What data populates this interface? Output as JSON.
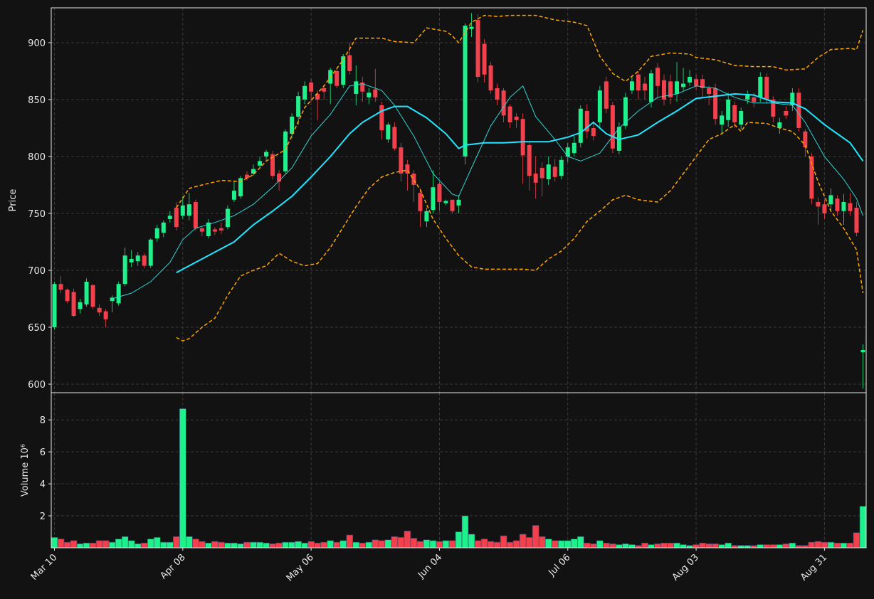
{
  "chart_data": [
    {
      "type": "candlestick",
      "ylabel": "Price",
      "ylim": [
        592.5,
        930.6
      ],
      "yticks": [
        600,
        650,
        700,
        750,
        800,
        850,
        900
      ],
      "grid": true,
      "up_color": "#1ef08c",
      "down_color": "#f2404c",
      "open": [
        650,
        688,
        683,
        681,
        666,
        670,
        687,
        667,
        664,
        673,
        671,
        688,
        707,
        708,
        713,
        704,
        728,
        733,
        745,
        755,
        748,
        748,
        760,
        737,
        730,
        736,
        737,
        738,
        762,
        765,
        784,
        785,
        792,
        800,
        802,
        785,
        787,
        820,
        835,
        850,
        865,
        855,
        860,
        864,
        875,
        863,
        889,
        855,
        865,
        852,
        859,
        845,
        815,
        826,
        808,
        793,
        785,
        768,
        743,
        753,
        776,
        759,
        762,
        757,
        800,
        912,
        920,
        899,
        880,
        860,
        858,
        844,
        835,
        833,
        810,
        785,
        790,
        780,
        791,
        783,
        800,
        803,
        812,
        840,
        825,
        830,
        866,
        845,
        805,
        827,
        858,
        872,
        864,
        848,
        878,
        867,
        866,
        855,
        861,
        865,
        868,
        868,
        860,
        860,
        828,
        832,
        845,
        828,
        850,
        852,
        852,
        870,
        850,
        825,
        840,
        845,
        856,
        822,
        800,
        760,
        758,
        758,
        763,
        752,
        759,
        755,
        628
      ],
      "high": [
        690,
        695,
        684,
        684,
        675,
        693,
        688,
        670,
        666,
        678,
        690,
        720,
        718,
        716,
        715,
        728,
        740,
        744,
        752,
        760,
        765,
        768,
        762,
        738,
        745,
        738,
        742,
        757,
        778,
        783,
        787,
        793,
        800,
        806,
        805,
        788,
        824,
        838,
        857,
        866,
        868,
        858,
        862,
        878,
        878,
        890,
        900,
        880,
        870,
        860,
        877,
        848,
        830,
        830,
        812,
        797,
        788,
        772,
        755,
        788,
        778,
        762,
        762,
        766,
        917,
        926,
        925,
        903,
        883,
        864,
        860,
        846,
        838,
        838,
        812,
        800,
        795,
        800,
        798,
        800,
        812,
        818,
        845,
        846,
        830,
        862,
        870,
        848,
        830,
        856,
        870,
        875,
        870,
        876,
        882,
        872,
        872,
        883,
        878,
        876,
        872,
        872,
        862,
        864,
        840,
        856,
        848,
        843,
        858,
        856,
        874,
        873,
        853,
        834,
        844,
        860,
        860,
        824,
        803,
        764,
        762,
        772,
        766,
        767,
        768,
        760,
        635
      ],
      "low": [
        648,
        680,
        671,
        659,
        662,
        668,
        666,
        660,
        650,
        663,
        669,
        686,
        703,
        704,
        702,
        702,
        725,
        729,
        742,
        735,
        745,
        744,
        735,
        730,
        728,
        731,
        732,
        736,
        760,
        763,
        779,
        783,
        790,
        797,
        780,
        770,
        785,
        816,
        828,
        846,
        848,
        832,
        850,
        846,
        860,
        860,
        872,
        845,
        848,
        846,
        848,
        815,
        812,
        805,
        778,
        770,
        760,
        738,
        738,
        750,
        752,
        757,
        750,
        750,
        793,
        905,
        865,
        865,
        855,
        845,
        830,
        825,
        825,
        776,
        770,
        763,
        765,
        775,
        778,
        780,
        795,
        800,
        808,
        816,
        814,
        826,
        838,
        803,
        802,
        824,
        855,
        850,
        850,
        843,
        850,
        845,
        846,
        848,
        858,
        862,
        858,
        852,
        845,
        828,
        820,
        826,
        825,
        824,
        846,
        843,
        848,
        846,
        830,
        820,
        833,
        840,
        822,
        800,
        758,
        740,
        745,
        752,
        748,
        740,
        748,
        730,
        596
      ],
      "close": [
        688,
        683,
        673,
        660,
        672,
        690,
        668,
        663,
        657,
        676,
        688,
        713,
        710,
        713,
        704,
        727,
        737,
        742,
        748,
        738,
        757,
        758,
        737,
        734,
        742,
        734,
        735,
        754,
        770,
        781,
        781,
        789,
        796,
        804,
        783,
        778,
        822,
        835,
        853,
        862,
        857,
        850,
        857,
        876,
        862,
        888,
        875,
        866,
        857,
        856,
        852,
        823,
        828,
        807,
        785,
        785,
        775,
        752,
        752,
        773,
        760,
        761,
        752,
        762,
        915,
        914,
        870,
        872,
        858,
        850,
        836,
        830,
        832,
        801,
        783,
        777,
        781,
        793,
        782,
        797,
        808,
        812,
        842,
        822,
        818,
        858,
        842,
        807,
        826,
        852,
        866,
        858,
        858,
        873,
        862,
        850,
        852,
        866,
        864,
        870,
        862,
        860,
        855,
        833,
        836,
        850,
        830,
        840,
        855,
        848,
        870,
        850,
        835,
        830,
        836,
        856,
        825,
        808,
        763,
        756,
        750,
        766,
        752,
        760,
        752,
        733,
        630
      ],
      "series": [
        {
          "color": "#ffa500",
          "linewidth": 1.5,
          "linestyle": "dashed",
          "x": [
            19,
            21,
            23,
            26,
            29,
            31,
            33,
            36,
            39,
            42,
            45,
            47,
            51,
            53,
            56,
            58,
            61,
            62,
            63,
            65,
            67,
            69,
            71,
            75,
            78,
            81,
            83,
            85,
            87,
            89,
            91,
            93,
            96,
            99,
            100,
            103,
            106,
            109,
            112,
            114,
            117,
            119,
            121,
            124,
            125,
            126
          ],
          "values": [
            755,
            772,
            775,
            779,
            778,
            784,
            796,
            806,
            843,
            862,
            885,
            904,
            904,
            901,
            900,
            913,
            910,
            906,
            900,
            918,
            924,
            923,
            924,
            924,
            920,
            918,
            915,
            888,
            873,
            866,
            875,
            888,
            891,
            890,
            887,
            885,
            880,
            879,
            879,
            876,
            877,
            887,
            894,
            895,
            894,
            911
          ]
        },
        {
          "color": "#ffa500",
          "linewidth": 1.5,
          "linestyle": "dashed",
          "x": [
            19,
            20,
            21,
            23,
            25,
            27,
            29,
            31,
            33,
            35,
            37,
            39,
            41,
            43,
            45,
            47,
            49,
            51,
            53,
            55,
            57,
            59,
            61,
            63,
            65,
            67,
            70,
            73,
            75,
            77,
            79,
            81,
            83,
            85,
            87,
            89,
            91,
            94,
            96,
            98,
            100,
            102,
            104,
            106,
            107,
            108,
            111,
            113,
            115,
            117,
            119,
            121,
            123,
            125,
            126
          ],
          "values": [
            641,
            638,
            640,
            650,
            658,
            678,
            695,
            700,
            704,
            715,
            708,
            704,
            706,
            720,
            738,
            756,
            772,
            782,
            786,
            788,
            771,
            745,
            728,
            713,
            703,
            701,
            701,
            701,
            700,
            710,
            717,
            728,
            743,
            752,
            762,
            766,
            762,
            760,
            770,
            785,
            800,
            815,
            820,
            828,
            822,
            830,
            829,
            825,
            822,
            810,
            778,
            752,
            737,
            718,
            680
          ]
        },
        {
          "color": "#2fd6d6",
          "linewidth": 1,
          "linestyle": "solid",
          "x": [
            9,
            12,
            15,
            18,
            20,
            22,
            25,
            28,
            31,
            34,
            37,
            40,
            43,
            46,
            48,
            51,
            53,
            56,
            59,
            62,
            63,
            65,
            68,
            71,
            73,
            75,
            78,
            80,
            82,
            85,
            88,
            91,
            94,
            97,
            100,
            103,
            106,
            109,
            112,
            115,
            117,
            120,
            123,
            125,
            126
          ],
          "values": [
            675,
            680,
            690,
            707,
            727,
            737,
            742,
            748,
            758,
            773,
            790,
            818,
            837,
            862,
            864,
            858,
            845,
            818,
            785,
            767,
            765,
            790,
            827,
            852,
            862,
            835,
            815,
            800,
            796,
            803,
            825,
            840,
            852,
            855,
            862,
            860,
            852,
            847,
            847,
            845,
            830,
            800,
            780,
            763,
            748
          ]
        },
        {
          "color": "#22e6ff",
          "linewidth": 2,
          "linestyle": "solid",
          "x": [
            19,
            22,
            25,
            28,
            31,
            34,
            37,
            40,
            43,
            46,
            48,
            51,
            53,
            55,
            58,
            61,
            63,
            64,
            67,
            70,
            73,
            77,
            80,
            82,
            84,
            86,
            88,
            91,
            94,
            97,
            100,
            103,
            106,
            109,
            112,
            115,
            117,
            120,
            122,
            124,
            126
          ],
          "values": [
            698,
            707,
            716,
            725,
            740,
            752,
            765,
            782,
            800,
            820,
            830,
            840,
            844,
            844,
            834,
            820,
            807,
            810,
            812,
            812,
            813,
            813,
            817,
            821,
            830,
            820,
            815,
            819,
            830,
            840,
            851,
            853,
            855,
            854,
            848,
            847,
            842,
            828,
            820,
            812,
            796
          ]
        }
      ]
    },
    {
      "type": "bar",
      "ylabel": "Volume  10⁶",
      "ylim": [
        0,
        9.7
      ],
      "yticks": [
        2,
        4,
        6,
        8
      ],
      "grid": true,
      "categories": [
        "Mar 10",
        null,
        null,
        null,
        null,
        null,
        null,
        null,
        null,
        null,
        null,
        null,
        null,
        null,
        null,
        null,
        null,
        null,
        null,
        null,
        "Apr 08",
        null,
        null,
        null,
        null,
        null,
        null,
        null,
        null,
        null,
        null,
        null,
        null,
        null,
        null,
        null,
        null,
        null,
        null,
        null,
        "May 06",
        null,
        null,
        null,
        null,
        null,
        null,
        null,
        null,
        null,
        null,
        null,
        null,
        null,
        null,
        null,
        null,
        null,
        null,
        null,
        "Jun 04",
        null,
        null,
        null,
        null,
        null,
        null,
        null,
        null,
        null,
        null,
        null,
        null,
        null,
        null,
        null,
        null,
        null,
        null,
        null,
        "Jul 06",
        null,
        null,
        null,
        null,
        null,
        null,
        null,
        null,
        null,
        null,
        null,
        null,
        null,
        null,
        null,
        null,
        null,
        null,
        null,
        "Aug 03",
        null,
        null,
        null,
        null,
        null,
        null,
        null,
        null,
        null,
        null,
        null,
        null,
        null,
        null,
        null,
        null,
        null,
        null,
        null,
        "Aug 31",
        null,
        null,
        null,
        null,
        null,
        null
      ],
      "values": [
        0.65,
        0.55,
        0.35,
        0.45,
        0.25,
        0.3,
        0.3,
        0.45,
        0.45,
        0.35,
        0.55,
        0.7,
        0.45,
        0.25,
        0.3,
        0.55,
        0.65,
        0.35,
        0.35,
        0.7,
        8.7,
        0.7,
        0.55,
        0.4,
        0.3,
        0.4,
        0.35,
        0.3,
        0.3,
        0.25,
        0.35,
        0.35,
        0.35,
        0.3,
        0.25,
        0.3,
        0.35,
        0.35,
        0.4,
        0.3,
        0.4,
        0.3,
        0.35,
        0.45,
        0.35,
        0.45,
        0.8,
        0.35,
        0.3,
        0.35,
        0.5,
        0.45,
        0.5,
        0.7,
        0.65,
        1.05,
        0.6,
        0.4,
        0.5,
        0.45,
        0.4,
        0.45,
        0.45,
        1.0,
        2.0,
        0.85,
        0.45,
        0.55,
        0.4,
        0.35,
        0.75,
        0.35,
        0.45,
        0.85,
        0.65,
        1.4,
        0.7,
        0.55,
        0.45,
        0.45,
        0.45,
        0.55,
        0.7,
        0.3,
        0.25,
        0.45,
        0.3,
        0.25,
        0.2,
        0.25,
        0.2,
        0.15,
        0.3,
        0.2,
        0.25,
        0.3,
        0.3,
        0.3,
        0.2,
        0.15,
        0.2,
        0.3,
        0.25,
        0.25,
        0.2,
        0.3,
        0.15,
        0.15,
        0.15,
        0.15,
        0.2,
        0.2,
        0.2,
        0.2,
        0.25,
        0.3,
        0.15,
        0.15,
        0.35,
        0.4,
        0.35,
        0.35,
        0.3,
        0.3,
        0.3,
        0.95,
        2.6
      ]
    }
  ]
}
